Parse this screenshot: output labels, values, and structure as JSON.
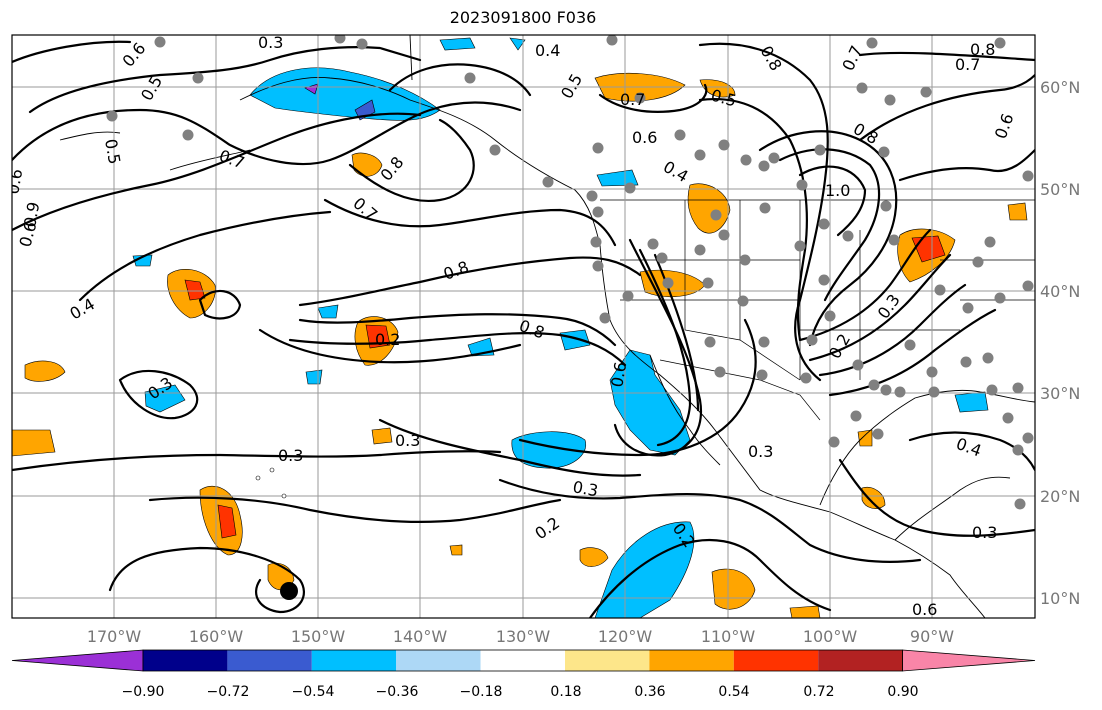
{
  "title": "2023091800 F036",
  "map": {
    "lon_ticks": [
      "170°W",
      "160°W",
      "150°W",
      "140°W",
      "130°W",
      "120°W",
      "110°W",
      "100°W",
      "90°W"
    ],
    "lat_ticks": [
      "60°N",
      "50°N",
      "40°N",
      "30°N",
      "20°N",
      "10°N"
    ],
    "grid": true
  },
  "contour_labels": [
    "0.6",
    "0.3",
    "0.4",
    "0.5",
    "0.8",
    "0.7",
    "0.8",
    "0.5",
    "0.7",
    "0.6",
    "0.8",
    "0.5",
    "0.7",
    "0.6",
    "0.4",
    "0.7",
    "1.0",
    "0.6",
    "0.9",
    "0.8",
    "0.5",
    "0.6",
    "0.4",
    "0.7",
    "0.8",
    "0.8",
    "0.6",
    "0.2",
    "0.3",
    "0.3",
    "0.3",
    "0.3",
    "0.3",
    "0.4",
    "0.2",
    "0.3",
    "0.2",
    "0.2",
    "0.3"
  ],
  "colorbar": {
    "ticks": [
      "−0.90",
      "−0.72",
      "−0.54",
      "−0.36",
      "−0.18",
      "0.18",
      "0.36",
      "0.54",
      "0.72",
      "0.90"
    ],
    "colors": [
      "#9b30d6",
      "#00008b",
      "#3a5bd0",
      "#00bfff",
      "#add8f6",
      "#ffffff",
      "#fde68a",
      "#ffa500",
      "#ff3300",
      "#b22222",
      "#f985a8"
    ]
  }
}
